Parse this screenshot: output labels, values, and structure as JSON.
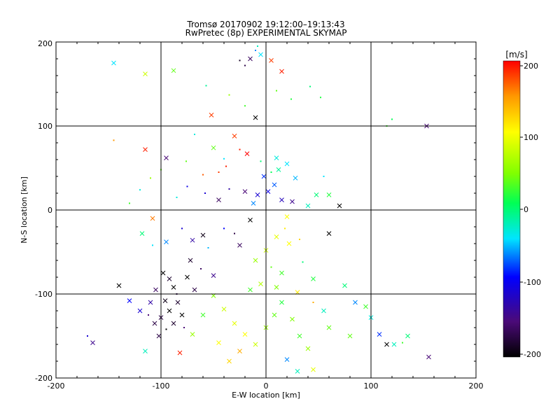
{
  "chart_data": {
    "type": "scatter",
    "title": "Tromsø 20170902 19:12:00–19:13:43",
    "subtitle": "RwPretec (8p) EXPERIMENTAL SKYMAP",
    "xlabel": "E-W location [km]",
    "ylabel": "N-S location [km]",
    "xlim": [
      -200,
      200
    ],
    "ylim": [
      -200,
      200
    ],
    "xticks": [
      "-200",
      "-100",
      "0",
      "100",
      "200"
    ],
    "yticks": [
      "-200",
      "-100",
      "0",
      "100",
      "200"
    ],
    "grid": true,
    "colorbar": {
      "label": "[m/s]",
      "range": [
        -200,
        200
      ],
      "ticks": [
        "200",
        "100",
        "0",
        "-100",
        "-200"
      ],
      "colormap": "black-purple-blue-cyan-green-yellow-red"
    },
    "points": [
      [
        -25,
        178,
        -185,
        "d"
      ],
      [
        -20,
        172,
        -170,
        "d"
      ],
      [
        -15,
        180,
        -160,
        "x"
      ],
      [
        -10,
        190,
        -60,
        "d"
      ],
      [
        -5,
        185,
        -40,
        "x"
      ],
      [
        -8,
        195,
        -20,
        "d"
      ],
      [
        5,
        178,
        180,
        "x"
      ],
      [
        15,
        165,
        190,
        "x"
      ],
      [
        -145,
        175,
        -40,
        "x"
      ],
      [
        -115,
        162,
        80,
        "x"
      ],
      [
        -88,
        166,
        40,
        "x"
      ],
      [
        -57,
        148,
        -10,
        "d"
      ],
      [
        -52,
        113,
        180,
        "x"
      ],
      [
        -35,
        137,
        60,
        "d"
      ],
      [
        -20,
        124,
        30,
        "d"
      ],
      [
        -10,
        110,
        -200,
        "x"
      ],
      [
        10,
        142,
        40,
        "d"
      ],
      [
        24,
        132,
        20,
        "d"
      ],
      [
        42,
        147,
        0,
        "d"
      ],
      [
        52,
        134,
        20,
        "d"
      ],
      [
        120,
        108,
        10,
        "d"
      ],
      [
        115,
        100,
        30,
        "d"
      ],
      [
        153,
        100,
        -150,
        "x"
      ],
      [
        -115,
        72,
        190,
        "x"
      ],
      [
        -95,
        62,
        -150,
        "x"
      ],
      [
        -145,
        83,
        150,
        "d"
      ],
      [
        -76,
        58,
        40,
        "d"
      ],
      [
        -68,
        90,
        -30,
        "d"
      ],
      [
        -50,
        74,
        40,
        "x"
      ],
      [
        -40,
        61,
        -40,
        "d"
      ],
      [
        -30,
        88,
        180,
        "x"
      ],
      [
        -25,
        72,
        190,
        "d"
      ],
      [
        -18,
        67,
        200,
        "x"
      ],
      [
        -38,
        52,
        190,
        "d"
      ],
      [
        -45,
        45,
        180,
        "d"
      ],
      [
        -60,
        42,
        170,
        "d"
      ],
      [
        10,
        62,
        -30,
        "x"
      ],
      [
        20,
        55,
        -40,
        "x"
      ],
      [
        12,
        48,
        -10,
        "x"
      ],
      [
        28,
        38,
        -50,
        "x"
      ],
      [
        5,
        45,
        10,
        "d"
      ],
      [
        -5,
        58,
        0,
        "d"
      ],
      [
        -2,
        40,
        -80,
        "x"
      ],
      [
        8,
        30,
        -70,
        "x"
      ],
      [
        2,
        22,
        -100,
        "x"
      ],
      [
        -8,
        18,
        -110,
        "x"
      ],
      [
        15,
        12,
        -120,
        "x"
      ],
      [
        25,
        10,
        -140,
        "x"
      ],
      [
        -12,
        8,
        -60,
        "x"
      ],
      [
        -20,
        22,
        -150,
        "x"
      ],
      [
        -35,
        25,
        -130,
        "d"
      ],
      [
        -45,
        12,
        -160,
        "x"
      ],
      [
        -58,
        20,
        -110,
        "d"
      ],
      [
        -75,
        28,
        -100,
        "d"
      ],
      [
        -85,
        15,
        -30,
        "d"
      ],
      [
        -100,
        48,
        40,
        "d"
      ],
      [
        -110,
        38,
        60,
        "d"
      ],
      [
        -120,
        24,
        -30,
        "d"
      ],
      [
        -130,
        8,
        30,
        "d"
      ],
      [
        -108,
        -10,
        160,
        "x"
      ],
      [
        -118,
        -28,
        0,
        "x"
      ],
      [
        -108,
        -42,
        -40,
        "d"
      ],
      [
        -95,
        -38,
        -60,
        "x"
      ],
      [
        -80,
        -22,
        -110,
        "d"
      ],
      [
        -70,
        -36,
        -130,
        "x"
      ],
      [
        -60,
        -30,
        -190,
        "x"
      ],
      [
        -55,
        -45,
        -50,
        "d"
      ],
      [
        -40,
        -22,
        -90,
        "d"
      ],
      [
        -30,
        -28,
        -170,
        "d"
      ],
      [
        -25,
        -42,
        -160,
        "x"
      ],
      [
        -15,
        -12,
        -200,
        "x"
      ],
      [
        20,
        -8,
        100,
        "x"
      ],
      [
        18,
        -22,
        110,
        "d"
      ],
      [
        10,
        -32,
        90,
        "x"
      ],
      [
        22,
        -40,
        100,
        "x"
      ],
      [
        32,
        -35,
        120,
        "d"
      ],
      [
        0,
        -48,
        80,
        "x"
      ],
      [
        -10,
        -60,
        60,
        "x"
      ],
      [
        5,
        -68,
        40,
        "d"
      ],
      [
        15,
        -75,
        30,
        "x"
      ],
      [
        35,
        -62,
        0,
        "d"
      ],
      [
        45,
        -82,
        20,
        "x"
      ],
      [
        60,
        -28,
        -200,
        "x"
      ],
      [
        70,
        5,
        -200,
        "x"
      ],
      [
        60,
        18,
        20,
        "x"
      ],
      [
        55,
        40,
        -40,
        "d"
      ],
      [
        48,
        18,
        0,
        "x"
      ],
      [
        40,
        5,
        -20,
        "x"
      ],
      [
        75,
        -90,
        0,
        "x"
      ],
      [
        85,
        -110,
        -60,
        "x"
      ],
      [
        95,
        -115,
        30,
        "x"
      ],
      [
        80,
        -150,
        40,
        "x"
      ],
      [
        108,
        -148,
        -80,
        "x"
      ],
      [
        115,
        -160,
        -200,
        "x"
      ],
      [
        122,
        -160,
        -20,
        "x"
      ],
      [
        130,
        -158,
        30,
        "d"
      ],
      [
        100,
        -128,
        -30,
        "x"
      ],
      [
        155,
        -175,
        -150,
        "x"
      ],
      [
        135,
        -150,
        0,
        "x"
      ],
      [
        -98,
        -75,
        -200,
        "x"
      ],
      [
        -92,
        -82,
        -180,
        "x"
      ],
      [
        -88,
        -92,
        -200,
        "x"
      ],
      [
        -85,
        -100,
        -170,
        "d"
      ],
      [
        -96,
        -108,
        -190,
        "x"
      ],
      [
        -92,
        -120,
        -200,
        "x"
      ],
      [
        -100,
        -128,
        -170,
        "x"
      ],
      [
        -88,
        -135,
        -180,
        "x"
      ],
      [
        -95,
        -142,
        -200,
        "d"
      ],
      [
        -102,
        -150,
        -170,
        "x"
      ],
      [
        -84,
        -110,
        -180,
        "x"
      ],
      [
        -80,
        -125,
        -200,
        "x"
      ],
      [
        -78,
        -140,
        -150,
        "d"
      ],
      [
        -105,
        -95,
        -160,
        "x"
      ],
      [
        -110,
        -110,
        -130,
        "x"
      ],
      [
        -112,
        -125,
        -150,
        "d"
      ],
      [
        -106,
        -135,
        -170,
        "x"
      ],
      [
        -120,
        -120,
        -110,
        "x"
      ],
      [
        -130,
        -108,
        -90,
        "x"
      ],
      [
        -140,
        -90,
        -200,
        "x"
      ],
      [
        -165,
        -158,
        -140,
        "x"
      ],
      [
        -170,
        -150,
        -110,
        "d"
      ],
      [
        -115,
        -168,
        -20,
        "x"
      ],
      [
        -82,
        -170,
        190,
        "x"
      ],
      [
        -70,
        -148,
        60,
        "x"
      ],
      [
        -60,
        -125,
        30,
        "x"
      ],
      [
        -50,
        -102,
        50,
        "x"
      ],
      [
        -40,
        -118,
        80,
        "x"
      ],
      [
        -30,
        -135,
        90,
        "x"
      ],
      [
        -20,
        -148,
        100,
        "x"
      ],
      [
        -10,
        -160,
        80,
        "x"
      ],
      [
        0,
        -140,
        60,
        "x"
      ],
      [
        8,
        -125,
        40,
        "x"
      ],
      [
        15,
        -110,
        20,
        "x"
      ],
      [
        25,
        -130,
        50,
        "x"
      ],
      [
        32,
        -150,
        30,
        "x"
      ],
      [
        40,
        -165,
        60,
        "x"
      ],
      [
        20,
        -178,
        -60,
        "x"
      ],
      [
        30,
        -192,
        -20,
        "x"
      ],
      [
        45,
        -190,
        90,
        "x"
      ],
      [
        -25,
        -168,
        140,
        "x"
      ],
      [
        -35,
        -180,
        120,
        "x"
      ],
      [
        -45,
        -158,
        100,
        "x"
      ],
      [
        55,
        -120,
        -20,
        "x"
      ],
      [
        60,
        -140,
        40,
        "x"
      ],
      [
        -15,
        -95,
        30,
        "x"
      ],
      [
        -5,
        -88,
        70,
        "x"
      ],
      [
        10,
        -92,
        50,
        "x"
      ],
      [
        30,
        -98,
        110,
        "x"
      ],
      [
        45,
        -110,
        140,
        "d"
      ],
      [
        -50,
        -78,
        -140,
        "x"
      ],
      [
        -62,
        -70,
        -160,
        "d"
      ],
      [
        -72,
        -60,
        -180,
        "x"
      ],
      [
        -75,
        -80,
        -200,
        "x"
      ],
      [
        -68,
        -95,
        -170,
        "x"
      ]
    ]
  }
}
